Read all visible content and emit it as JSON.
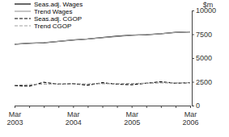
{
  "chart_data": {
    "type": "line",
    "ylabel": "$m",
    "categories": [
      "Mar 2003",
      null,
      null,
      null,
      "Mar 2004",
      null,
      null,
      null,
      "Mar 2005",
      null,
      null,
      null,
      "Mar 2006"
    ],
    "series": [
      {
        "name": "Seas.adj. Wages",
        "color": "#000000",
        "line_style": "solid",
        "values": [
          6450,
          6550,
          6600,
          6750,
          6900,
          7000,
          7150,
          7300,
          7400,
          7450,
          7550,
          7700,
          7750
        ]
      },
      {
        "name": "Trend Wages",
        "color": "#a0a0a0",
        "line_style": "solid",
        "values": [
          6450,
          6530,
          6620,
          6750,
          6880,
          7000,
          7130,
          7260,
          7380,
          7460,
          7560,
          7680,
          7760
        ]
      },
      {
        "name": "Seas.adj. CGOP",
        "color": "#000000",
        "line_style": "dashed",
        "values": [
          2100,
          2050,
          2450,
          2250,
          2300,
          2150,
          2400,
          2250,
          2200,
          2350,
          2500,
          2350,
          2400
        ]
      },
      {
        "name": "Trend CGOP",
        "color": "#a0a0a0",
        "line_style": "dashed",
        "values": [
          2150,
          2200,
          2250,
          2280,
          2290,
          2290,
          2300,
          2300,
          2320,
          2350,
          2380,
          2390,
          2400
        ]
      }
    ],
    "ylim": [
      0,
      10000
    ],
    "yticks": [
      0,
      2500,
      5000,
      7500,
      10000
    ],
    "legend": "top-left"
  }
}
